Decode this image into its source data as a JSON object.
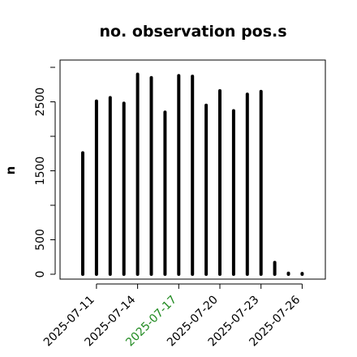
{
  "chart_data": {
    "type": "bar",
    "title": "no. observation pos.s",
    "ylabel": "n",
    "xlabel": "",
    "ylim": [
      0,
      3000
    ],
    "yticks": [
      0,
      500,
      1500,
      2500
    ],
    "x": [
      "2025-07-10",
      "2025-07-11",
      "2025-07-12",
      "2025-07-13",
      "2025-07-14",
      "2025-07-15",
      "2025-07-16",
      "2025-07-17",
      "2025-07-18",
      "2025-07-19",
      "2025-07-20",
      "2025-07-21",
      "2025-07-22",
      "2025-07-23",
      "2025-07-24",
      "2025-07-25",
      "2025-07-26"
    ],
    "values": [
      1760,
      2510,
      2560,
      2480,
      2900,
      2850,
      2350,
      2880,
      2870,
      2450,
      2660,
      2370,
      2610,
      2650,
      170,
      15,
      10
    ],
    "xtick_labels": [
      "2025-07-11",
      "2025-07-14",
      "2025-07-17",
      "2025-07-20",
      "2025-07-23",
      "2025-07-26"
    ],
    "highlighted_xtick": "2025-07-17",
    "colors": {
      "bars": "#000000",
      "highlight": "#228b22",
      "text": "#000000"
    }
  }
}
